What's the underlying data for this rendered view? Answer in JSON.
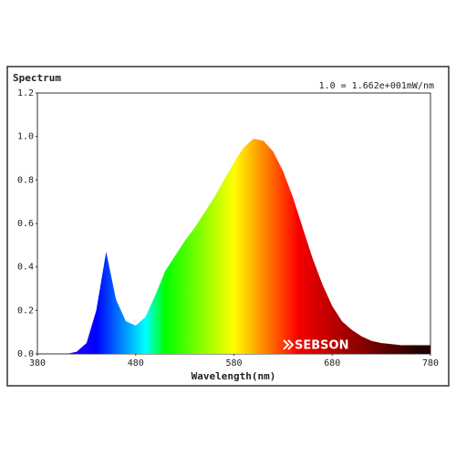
{
  "chart_data": {
    "type": "area",
    "title": "Spectrum",
    "annotation": "1.0 = 1.662e+001mW/nm",
    "x_label": "Wavelength(nm)",
    "watermark": "SEBSON",
    "x": [
      380,
      390,
      400,
      410,
      420,
      430,
      440,
      450,
      460,
      470,
      480,
      490,
      500,
      510,
      520,
      530,
      540,
      550,
      560,
      570,
      580,
      590,
      600,
      610,
      620,
      630,
      640,
      650,
      660,
      670,
      680,
      690,
      700,
      710,
      720,
      730,
      740,
      750,
      760,
      770,
      780
    ],
    "values": [
      0,
      0,
      0,
      0,
      0.01,
      0.05,
      0.2,
      0.47,
      0.25,
      0.15,
      0.13,
      0.17,
      0.27,
      0.38,
      0.45,
      0.52,
      0.58,
      0.65,
      0.72,
      0.8,
      0.88,
      0.95,
      0.99,
      0.98,
      0.93,
      0.84,
      0.72,
      0.58,
      0.44,
      0.32,
      0.22,
      0.15,
      0.11,
      0.08,
      0.06,
      0.05,
      0.045,
      0.04,
      0.04,
      0.04,
      0.04
    ],
    "xlim": [
      380,
      780
    ],
    "xticks": [
      380,
      480,
      580,
      680,
      780
    ],
    "ylim": [
      0,
      1.2
    ],
    "yticks": [
      {
        "value": 0,
        "label": "0.0"
      },
      0.2,
      0.4,
      0.6,
      0.8,
      {
        "value": 1,
        "label": "1.0"
      },
      1.2
    ]
  }
}
